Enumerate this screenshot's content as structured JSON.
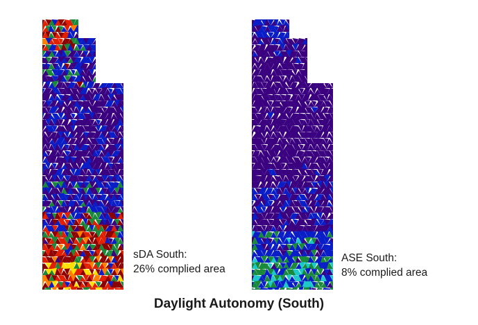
{
  "panels": [
    {
      "id": "sda",
      "metric": "sDA South:",
      "value_text": "26% complied area",
      "complied_fraction": 0.26,
      "colors": [
        "#3a0080",
        "#0a1ec8",
        "#1a8a3a",
        "#8b0000",
        "#e02000",
        "#ff8000",
        "#ffe000"
      ]
    },
    {
      "id": "ase",
      "metric": "ASE South:",
      "value_text": "8% complied area",
      "complied_fraction": 0.08,
      "colors": [
        "#3a0080",
        "#0a1ec8",
        "#1a8a3a",
        "#1ec8c8"
      ]
    }
  ],
  "caption": "Daylight Autonomy (South)"
}
